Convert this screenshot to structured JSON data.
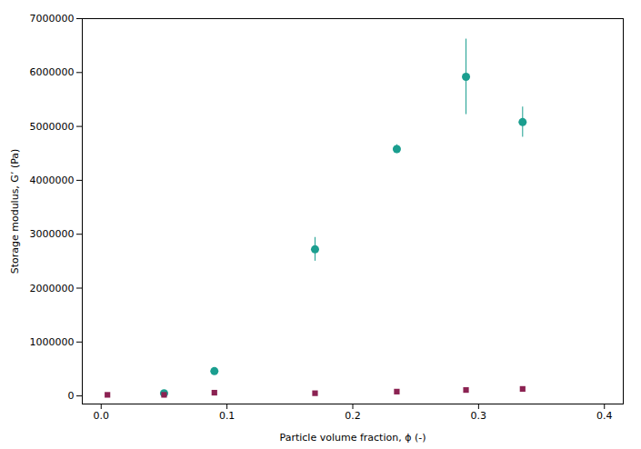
{
  "chart_data": {
    "type": "scatter",
    "xlabel": "Particle volume fraction, ϕ (-)",
    "ylabel": "Storage modulus, G’ (Pa)",
    "xlim": [
      -0.015,
      0.415
    ],
    "ylim": [
      -150000,
      7000000
    ],
    "xticks": [
      {
        "value": 0,
        "label": "0.0"
      },
      0.1,
      0.2,
      0.3,
      0.4
    ],
    "yticks": [
      0,
      1000000,
      2000000,
      3000000,
      4000000,
      5000000,
      6000000,
      7000000
    ],
    "grid": false,
    "series": [
      {
        "color": "#1a9e8f",
        "marker": "circle",
        "x": [
          0.05,
          0.09,
          0.17,
          0.235,
          0.29,
          0.335
        ],
        "values": [
          50000,
          460000,
          2720000,
          4580000,
          5920000,
          5080000
        ],
        "yerr": [
          0,
          30000,
          220000,
          80000,
          700000,
          280000
        ]
      },
      {
        "color": "#8b2252",
        "marker": "square",
        "x": [
          0.005,
          0.05,
          0.09,
          0.17,
          0.235,
          0.29,
          0.335
        ],
        "values": [
          20000,
          20000,
          60000,
          50000,
          80000,
          110000,
          130000
        ]
      }
    ]
  }
}
